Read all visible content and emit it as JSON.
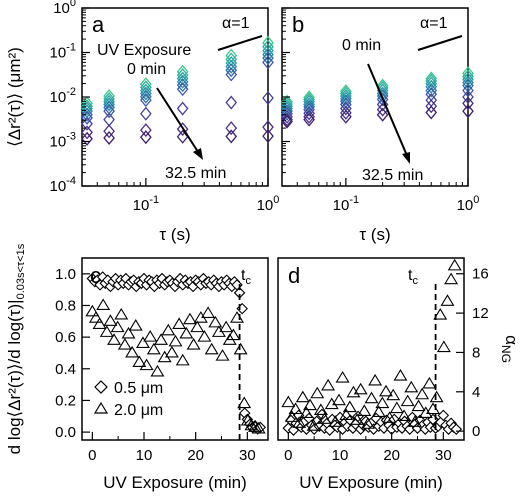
{
  "chart_data": [
    {
      "panel": "a",
      "type": "scatter",
      "xscale": "log",
      "yscale": "log",
      "xlim": [
        0.03,
        1.0
      ],
      "ylim": [
        0.0001,
        1
      ],
      "xticklabels": [
        "10^-1",
        "10^0"
      ],
      "yticklabels": [
        "10^-4",
        "10^-3",
        "10^-2",
        "10^-1",
        "10^0"
      ],
      "ylabel": "⟨Δr²(τ)⟩ (μm²)",
      "xlabel": "τ (s)",
      "annotations": [
        "UV Exposure",
        "0 min",
        "32.5 min",
        "α=1"
      ],
      "series": [
        {
          "time_min": 0,
          "x": [
            0.033,
            0.05,
            0.1,
            0.2,
            0.5,
            1.0
          ],
          "y": [
            0.0072,
            0.0105,
            0.0195,
            0.037,
            0.085,
            0.165
          ]
        },
        {
          "time_min": 5,
          "x": [
            0.033,
            0.05,
            0.1,
            0.2,
            0.5,
            1.0
          ],
          "y": [
            0.0062,
            0.009,
            0.0165,
            0.031,
            0.07,
            0.135
          ]
        },
        {
          "time_min": 10,
          "x": [
            0.033,
            0.05,
            0.1,
            0.2,
            0.5,
            1.0
          ],
          "y": [
            0.0055,
            0.0078,
            0.014,
            0.026,
            0.058,
            0.11
          ]
        },
        {
          "time_min": 15,
          "x": [
            0.033,
            0.05,
            0.1,
            0.2,
            0.5,
            1.0
          ],
          "y": [
            0.0048,
            0.0068,
            0.012,
            0.022,
            0.048,
            0.09
          ]
        },
        {
          "time_min": 20,
          "x": [
            0.033,
            0.05,
            0.1,
            0.2,
            0.5,
            1.0
          ],
          "y": [
            0.004,
            0.0058,
            0.0102,
            0.0185,
            0.04,
            0.075
          ]
        },
        {
          "time_min": 25,
          "x": [
            0.033,
            0.05,
            0.1,
            0.2,
            0.5,
            1.0
          ],
          "y": [
            0.0034,
            0.0048,
            0.0085,
            0.015,
            0.032,
            0.06
          ]
        },
        {
          "time_min": 28,
          "x": [
            0.033,
            0.05,
            0.1,
            0.2,
            0.5,
            1.0
          ],
          "y": [
            0.0025,
            0.0031,
            0.0042,
            0.0055,
            0.0075,
            0.0095
          ]
        },
        {
          "time_min": 30,
          "x": [
            0.033,
            0.05,
            0.1,
            0.2,
            0.5,
            1.0
          ],
          "y": [
            0.0016,
            0.0017,
            0.0018,
            0.0019,
            0.002,
            0.0021
          ]
        },
        {
          "time_min": 32.5,
          "x": [
            0.033,
            0.05,
            0.1,
            0.2,
            0.5,
            1.0
          ],
          "y": [
            0.00115,
            0.0012,
            0.00125,
            0.00128,
            0.0013,
            0.00132
          ]
        }
      ]
    },
    {
      "panel": "b",
      "type": "scatter",
      "xscale": "log",
      "yscale": "log",
      "xlim": [
        0.03,
        1.0
      ],
      "ylim": [
        0.0001,
        1
      ],
      "xticklabels": [
        "10^-1",
        "10^0"
      ],
      "xlabel": "τ (s)",
      "annotations": [
        "0 min",
        "32.5 min",
        "α=1"
      ],
      "series": [
        {
          "time_min": 0,
          "x": [
            0.033,
            0.05,
            0.1,
            0.2,
            0.5,
            1.0
          ],
          "y": [
            0.0078,
            0.0098,
            0.0135,
            0.018,
            0.026,
            0.034
          ]
        },
        {
          "time_min": 5,
          "x": [
            0.033,
            0.05,
            0.1,
            0.2,
            0.5,
            1.0
          ],
          "y": [
            0.007,
            0.0088,
            0.012,
            0.016,
            0.023,
            0.029
          ]
        },
        {
          "time_min": 10,
          "x": [
            0.033,
            0.05,
            0.1,
            0.2,
            0.5,
            1.0
          ],
          "y": [
            0.0062,
            0.0078,
            0.0105,
            0.014,
            0.02,
            0.025
          ]
        },
        {
          "time_min": 15,
          "x": [
            0.033,
            0.05,
            0.1,
            0.2,
            0.5,
            1.0
          ],
          "y": [
            0.0055,
            0.0068,
            0.0092,
            0.012,
            0.017,
            0.021
          ]
        },
        {
          "time_min": 20,
          "x": [
            0.033,
            0.05,
            0.1,
            0.2,
            0.5,
            1.0
          ],
          "y": [
            0.0048,
            0.006,
            0.008,
            0.0105,
            0.014,
            0.018
          ]
        },
        {
          "time_min": 25,
          "x": [
            0.033,
            0.05,
            0.1,
            0.2,
            0.5,
            1.0
          ],
          "y": [
            0.0042,
            0.0052,
            0.0068,
            0.0088,
            0.0115,
            0.014
          ]
        },
        {
          "time_min": 28,
          "x": [
            0.033,
            0.05,
            0.1,
            0.2,
            0.5,
            1.0
          ],
          "y": [
            0.0036,
            0.0043,
            0.0055,
            0.0068,
            0.0085,
            0.01
          ]
        },
        {
          "time_min": 30,
          "x": [
            0.033,
            0.05,
            0.1,
            0.2,
            0.5,
            1.0
          ],
          "y": [
            0.0031,
            0.0036,
            0.0044,
            0.0052,
            0.0062,
            0.0072
          ]
        },
        {
          "time_min": 32.5,
          "x": [
            0.033,
            0.05,
            0.1,
            0.2,
            0.5,
            1.0
          ],
          "y": [
            0.0028,
            0.0031,
            0.0036,
            0.004,
            0.0045,
            0.0048
          ]
        }
      ]
    },
    {
      "panel": "c",
      "type": "scatter",
      "xlim": [
        -2,
        34
      ],
      "ylim": [
        -0.05,
        1.1
      ],
      "xticklabels": [
        "0",
        "10",
        "20",
        "30"
      ],
      "yticklabels": [
        "0.0",
        "0.2",
        "0.4",
        "0.6",
        "0.8",
        "1.0"
      ],
      "ylabel": "d log⟨Δr²(τ)⟩/d log(τ)|0.03s<τ<1s",
      "xlabel": "UV Exposure (min)",
      "annotations": [
        "t_c"
      ],
      "tc_min": 28.5,
      "series": [
        {
          "name": "0.5 μm",
          "marker": "diamond",
          "x": [
            0,
            0.5,
            1,
            1.5,
            2,
            2.5,
            3,
            3.5,
            4,
            4.5,
            5,
            5.5,
            6,
            6.5,
            7,
            7.5,
            8,
            8.5,
            9,
            9.5,
            10,
            10.5,
            11,
            11.5,
            12,
            12.5,
            13,
            13.5,
            14,
            14.5,
            15,
            15.5,
            16,
            16.5,
            17,
            17.5,
            18,
            18.5,
            19,
            19.5,
            20,
            20.5,
            21,
            21.5,
            22,
            22.5,
            23,
            23.5,
            24,
            24.5,
            25,
            25.5,
            26,
            26.5,
            27,
            27.5,
            28,
            28.5,
            29,
            29.5,
            30,
            30.5,
            31,
            31.5,
            32,
            32.5
          ],
          "y": [
            0.97,
            0.95,
            0.96,
            0.93,
            0.98,
            0.94,
            0.96,
            0.92,
            0.95,
            0.97,
            0.93,
            0.96,
            0.94,
            0.97,
            0.93,
            0.95,
            0.96,
            0.92,
            0.95,
            0.94,
            0.97,
            0.93,
            0.96,
            0.95,
            0.92,
            0.96,
            0.94,
            0.97,
            0.93,
            0.95,
            0.96,
            0.94,
            0.92,
            0.95,
            0.97,
            0.93,
            0.96,
            0.94,
            0.95,
            0.92,
            0.96,
            0.95,
            0.93,
            0.97,
            0.94,
            0.95,
            0.93,
            0.96,
            0.94,
            0.92,
            0.95,
            0.93,
            0.96,
            0.94,
            0.92,
            0.95,
            0.93,
            0.88,
            0.78,
            0.12,
            0.08,
            0.05,
            0.03,
            0.04,
            0.02,
            0.03
          ]
        },
        {
          "name": "2.0 μm",
          "marker": "triangle",
          "x": [
            0,
            0.7,
            1.4,
            2.1,
            2.8,
            3.5,
            4.2,
            4.9,
            5.6,
            6.3,
            7,
            7.7,
            8.4,
            9.1,
            9.8,
            10.5,
            11.2,
            11.9,
            12.6,
            13.3,
            14,
            14.7,
            15.4,
            16.1,
            16.8,
            17.5,
            18.2,
            18.9,
            19.6,
            20.3,
            21,
            21.7,
            22.4,
            23.1,
            23.8,
            24.5,
            25.2,
            25.9,
            26.6,
            27.3,
            28,
            28.7,
            29.4,
            30.1,
            30.8,
            31.5,
            32.2
          ],
          "y": [
            0.76,
            0.72,
            0.68,
            0.8,
            0.63,
            0.7,
            0.58,
            0.66,
            0.74,
            0.55,
            0.62,
            0.5,
            0.67,
            0.44,
            0.56,
            0.42,
            0.6,
            0.52,
            0.38,
            0.58,
            0.47,
            0.64,
            0.5,
            0.57,
            0.68,
            0.45,
            0.62,
            0.71,
            0.55,
            0.66,
            0.72,
            0.6,
            0.75,
            0.52,
            0.69,
            0.63,
            0.48,
            0.66,
            0.58,
            0.61,
            0.72,
            0.52,
            0.18,
            0.07,
            0.04,
            0.03,
            0.02
          ]
        }
      ],
      "legend": [
        "0.5 μm",
        "2.0 μm"
      ]
    },
    {
      "panel": "d",
      "type": "scatter",
      "xlim": [
        -2,
        34
      ],
      "ylim": [
        -0.9,
        17.6
      ],
      "xticklabels": [
        "0",
        "10",
        "20",
        "30"
      ],
      "yticklabels": [
        "0",
        "4",
        "8",
        "12",
        "16"
      ],
      "ylabel": "α_NG",
      "xlabel": "UV Exposure (min)",
      "annotations": [
        "t_c"
      ],
      "tc_min": 28.5,
      "series": [
        {
          "name": "0.5 μm",
          "marker": "diamond",
          "x": [
            0,
            0.5,
            1,
            1.5,
            2,
            2.5,
            3,
            3.5,
            4,
            4.5,
            5,
            5.5,
            6,
            6.5,
            7,
            7.5,
            8,
            8.5,
            9,
            9.5,
            10,
            10.5,
            11,
            11.5,
            12,
            12.5,
            13,
            13.5,
            14,
            14.5,
            15,
            15.5,
            16,
            16.5,
            17,
            17.5,
            18,
            18.5,
            19,
            19.5,
            20,
            20.5,
            21,
            21.5,
            22,
            22.5,
            23,
            23.5,
            24,
            24.5,
            25,
            25.5,
            26,
            26.5,
            27,
            27.5,
            28,
            28.5,
            29,
            29.5,
            30,
            30.5,
            31,
            31.5,
            32,
            32.5
          ],
          "y": [
            0.3,
            1.1,
            0.1,
            0.8,
            1.6,
            0.4,
            0.9,
            0.2,
            1.3,
            0.6,
            0.2,
            1.0,
            0.5,
            1.7,
            0.3,
            0.8,
            0.1,
            1.2,
            0.6,
            0.4,
            1.4,
            0.2,
            0.9,
            0.5,
            1.1,
            0.3,
            0.7,
            1.5,
            0.2,
            0.6,
            1.0,
            0.4,
            0.8,
            0.2,
            1.3,
            0.5,
            0.9,
            0.3,
            1.1,
            0.6,
            0.2,
            1.2,
            0.4,
            0.8,
            0.3,
            1.0,
            0.5,
            0.2,
            1.4,
            0.7,
            0.3,
            1.1,
            0.6,
            0.2,
            0.9,
            0.4,
            1.2,
            0.3,
            0.5,
            0.9,
            1.6,
            0.6,
            0.2,
            0.8,
            0.4,
            0.2
          ]
        },
        {
          "name": "2.0 μm",
          "marker": "triangle",
          "x": [
            0,
            0.7,
            1.4,
            2.1,
            2.8,
            3.5,
            4.2,
            4.9,
            5.6,
            6.3,
            7,
            7.7,
            8.4,
            9.1,
            9.8,
            10.5,
            11.2,
            11.9,
            12.6,
            13.3,
            14,
            14.7,
            15.4,
            16.1,
            16.8,
            17.5,
            18.2,
            18.9,
            19.6,
            20.3,
            21,
            21.7,
            22.4,
            23.1,
            23.8,
            24.5,
            25.2,
            25.9,
            26.6,
            27.3,
            28,
            28.7,
            29.4,
            30.1,
            30.8,
            31.5,
            32.2
          ],
          "y": [
            2.9,
            1.4,
            2.2,
            0.8,
            3.4,
            1.8,
            2.6,
            0.5,
            3.8,
            2.1,
            1.2,
            4.6,
            2.7,
            0.9,
            3.1,
            5.4,
            1.6,
            2.4,
            3.9,
            1.1,
            4.2,
            2.0,
            0.7,
            3.3,
            5.1,
            1.9,
            2.8,
            4.0,
            1.3,
            3.6,
            2.3,
            5.6,
            1.5,
            3.0,
            4.4,
            0.9,
            2.5,
            3.7,
            1.8,
            4.8,
            2.2,
            3.4,
            11.8,
            8.5,
            13.2,
            15.4,
            16.8
          ]
        }
      ]
    }
  ]
}
